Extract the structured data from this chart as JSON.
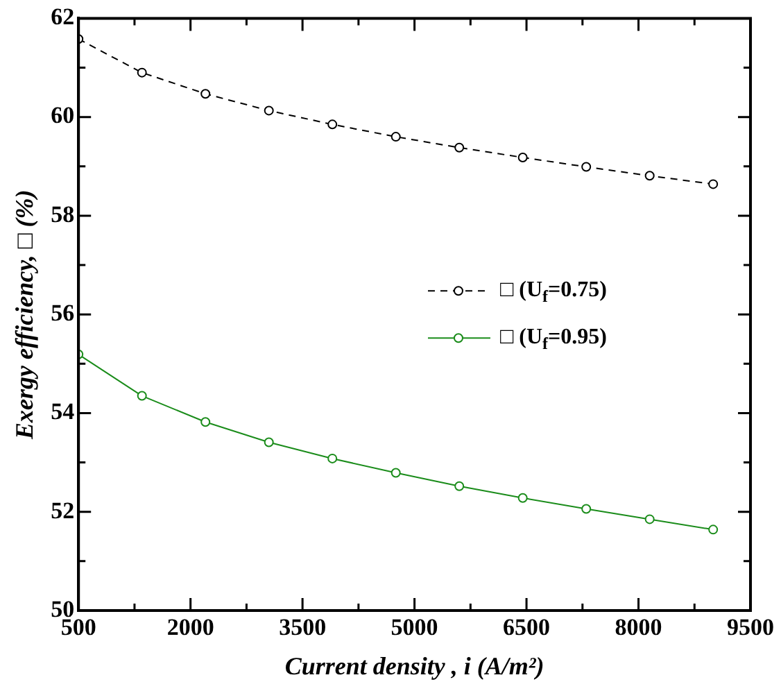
{
  "chart_data": {
    "type": "line",
    "xlabel": "Current density , i (A/m²)",
    "ylabel": "Exergy efficiency, □ (%)",
    "x": [
      500,
      1350,
      2200,
      3050,
      3900,
      4750,
      5600,
      6450,
      7300,
      8150,
      9000
    ],
    "series": [
      {
        "name": "□ (U$_{f}$=0.75)",
        "color": "#000000",
        "line_style": "dashed",
        "values": [
          61.58,
          60.9,
          60.47,
          60.13,
          59.85,
          59.6,
          59.38,
          59.18,
          58.99,
          58.81,
          58.64
        ]
      },
      {
        "name": "□ (U$_{f}$=0.95)",
        "color": "#1a8c1a",
        "line_style": "solid",
        "values": [
          55.19,
          54.35,
          53.82,
          53.41,
          53.08,
          52.79,
          52.52,
          52.28,
          52.06,
          51.85,
          51.64
        ]
      }
    ],
    "marker": "circle",
    "legend": "right",
    "grid": false,
    "xlim": [
      500,
      9500
    ],
    "xticks": [
      500,
      {
        "value": 1250,
        "label": null
      },
      2000,
      {
        "value": 2750,
        "label": null
      },
      3500,
      {
        "value": 4250,
        "label": null
      },
      5000,
      {
        "value": 5750,
        "label": null
      },
      6500,
      {
        "value": 7250,
        "label": null
      },
      8000,
      {
        "value": 8750,
        "label": null
      },
      9500
    ],
    "ylim": [
      50,
      62
    ],
    "yticks": [
      50,
      {
        "value": 51,
        "label": null
      },
      52,
      {
        "value": 53,
        "label": null
      },
      54,
      {
        "value": 55,
        "label": null
      },
      56,
      {
        "value": 57,
        "label": null
      },
      58,
      {
        "value": 59,
        "label": null
      },
      60,
      {
        "value": 61,
        "label": null
      },
      62
    ]
  }
}
